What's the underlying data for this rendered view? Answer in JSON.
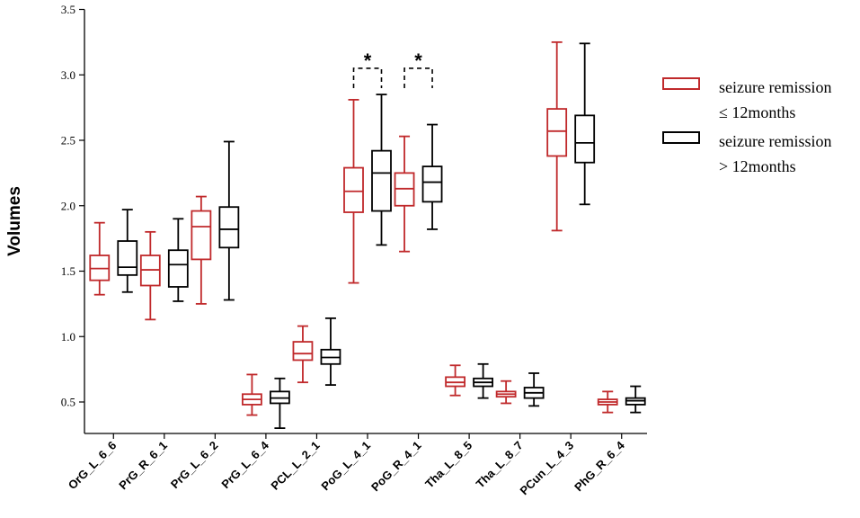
{
  "chart_data": {
    "type": "boxplot",
    "title": "",
    "xlabel": "",
    "ylabel": "Volumes",
    "ylim": [
      0.3,
      3.5
    ],
    "yticks": [
      0.5,
      1.0,
      1.5,
      2.0,
      2.5,
      3.0,
      3.5
    ],
    "ytick_labels": [
      "0.5",
      "1.0",
      "1.5",
      "2.0",
      "2.5",
      "3.0",
      "3.5"
    ],
    "categories": [
      "OrG_L_6_6",
      "PrG_R_6_1",
      "PrG_L_6_2",
      "PrG_L_6_4",
      "PCL_L_2_1",
      "PoG_L_4_1",
      "PoG_R_4_1",
      "Tha_L_8_5",
      "Tha_L_8_7",
      "PCun_L_4_3",
      "PhG_R_6_4"
    ],
    "series": [
      {
        "name": "seizure remission ≤ 12months",
        "legend_lines": [
          "seizure remission",
          "≤ 12months"
        ],
        "color": "#c0292b",
        "boxes": [
          {
            "min": 1.32,
            "q1": 1.43,
            "median": 1.52,
            "q3": 1.62,
            "max": 1.87
          },
          {
            "min": 1.13,
            "q1": 1.39,
            "median": 1.51,
            "q3": 1.62,
            "max": 1.8
          },
          {
            "min": 1.25,
            "q1": 1.59,
            "median": 1.84,
            "q3": 1.96,
            "max": 2.07
          },
          {
            "min": 0.4,
            "q1": 0.48,
            "median": 0.52,
            "q3": 0.56,
            "max": 0.71
          },
          {
            "min": 0.65,
            "q1": 0.82,
            "median": 0.87,
            "q3": 0.96,
            "max": 1.08
          },
          {
            "min": 1.41,
            "q1": 1.95,
            "median": 2.11,
            "q3": 2.29,
            "max": 2.81
          },
          {
            "min": 1.65,
            "q1": 2.0,
            "median": 2.13,
            "q3": 2.25,
            "max": 2.53
          },
          {
            "min": 0.55,
            "q1": 0.62,
            "median": 0.65,
            "q3": 0.69,
            "max": 0.78
          },
          {
            "min": 0.49,
            "q1": 0.54,
            "median": 0.56,
            "q3": 0.58,
            "max": 0.66
          },
          {
            "min": 1.81,
            "q1": 2.38,
            "median": 2.57,
            "q3": 2.74,
            "max": 3.25
          },
          {
            "min": 0.42,
            "q1": 0.48,
            "median": 0.5,
            "q3": 0.52,
            "max": 0.58
          }
        ]
      },
      {
        "name": "seizure remission > 12months",
        "legend_lines": [
          "seizure remission",
          "> 12months"
        ],
        "color": "#000000",
        "boxes": [
          {
            "min": 1.34,
            "q1": 1.47,
            "median": 1.53,
            "q3": 1.73,
            "max": 1.97
          },
          {
            "min": 1.27,
            "q1": 1.38,
            "median": 1.55,
            "q3": 1.66,
            "max": 1.9
          },
          {
            "min": 1.28,
            "q1": 1.68,
            "median": 1.82,
            "q3": 1.99,
            "max": 2.49
          },
          {
            "min": 0.3,
            "q1": 0.49,
            "median": 0.53,
            "q3": 0.58,
            "max": 0.68
          },
          {
            "min": 0.63,
            "q1": 0.79,
            "median": 0.84,
            "q3": 0.9,
            "max": 1.14
          },
          {
            "min": 1.7,
            "q1": 1.96,
            "median": 2.25,
            "q3": 2.42,
            "max": 2.85
          },
          {
            "min": 1.82,
            "q1": 2.03,
            "median": 2.18,
            "q3": 2.3,
            "max": 2.62
          },
          {
            "min": 0.53,
            "q1": 0.62,
            "median": 0.65,
            "q3": 0.68,
            "max": 0.79
          },
          {
            "min": 0.47,
            "q1": 0.53,
            "median": 0.57,
            "q3": 0.61,
            "max": 0.72
          },
          {
            "min": 2.01,
            "q1": 2.33,
            "median": 2.48,
            "q3": 2.69,
            "max": 3.24
          },
          {
            "min": 0.42,
            "q1": 0.48,
            "median": 0.51,
            "q3": 0.53,
            "max": 0.62
          }
        ]
      }
    ],
    "annotations": [
      {
        "category": "PoG_L_4_1",
        "text": "*",
        "type": "significance-bracket",
        "y": 3.05
      },
      {
        "category": "PoG_R_4_1",
        "text": "*",
        "type": "significance-bracket",
        "y": 3.05
      }
    ],
    "legend_position": "top-right",
    "grid": false
  }
}
